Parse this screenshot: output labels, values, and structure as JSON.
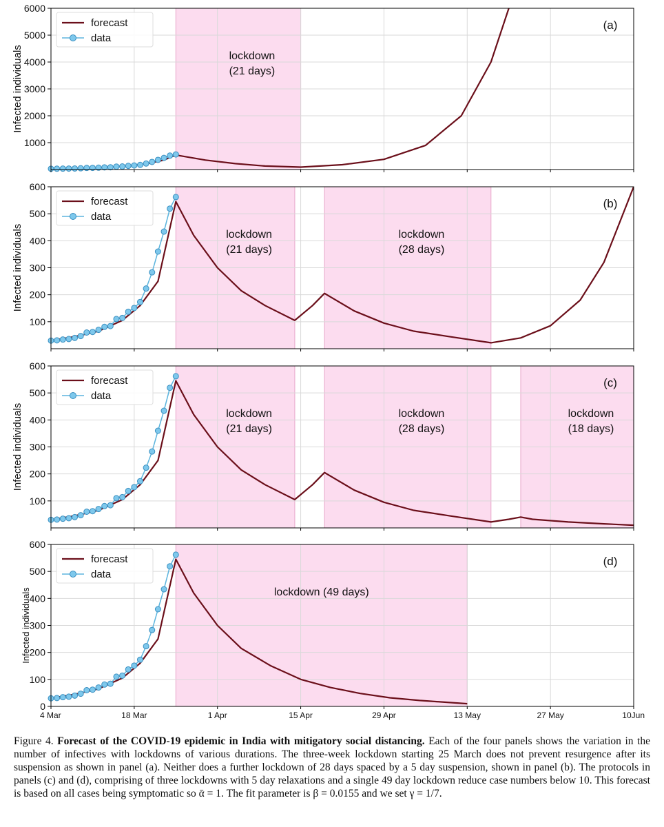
{
  "chart_data": [
    {
      "type": "line",
      "panel_label": "(a)",
      "ylabel": "Infected individuals",
      "ylim": [
        0,
        6000
      ],
      "yticks": [
        1000,
        2000,
        3000,
        4000,
        5000,
        6000
      ],
      "xlim": [
        "2020-03-04",
        "2020-06-10"
      ],
      "legend": [
        "forecast",
        "data"
      ],
      "legend_position": "top-left",
      "grid": true,
      "lockdowns": [
        {
          "start": "2020-03-25",
          "end": "2020-04-15",
          "label_lines": [
            "lockdown",
            "(21 days)"
          ]
        }
      ],
      "series": [
        {
          "name": "forecast",
          "x": [
            "2020-03-04",
            "2020-03-08",
            "2020-03-12",
            "2020-03-16",
            "2020-03-20",
            "2020-03-23",
            "2020-03-25",
            "2020-03-30",
            "2020-04-04",
            "2020-04-09",
            "2020-04-15",
            "2020-04-22",
            "2020-04-29",
            "2020-05-06",
            "2020-05-12",
            "2020-05-17",
            "2020-05-20"
          ],
          "y": [
            30,
            45,
            70,
            120,
            210,
            350,
            540,
            350,
            220,
            130,
            90,
            180,
            380,
            900,
            2000,
            4000,
            6000
          ]
        },
        {
          "name": "data",
          "x": [
            "2020-03-04",
            "2020-03-05",
            "2020-03-06",
            "2020-03-07",
            "2020-03-08",
            "2020-03-09",
            "2020-03-10",
            "2020-03-11",
            "2020-03-12",
            "2020-03-13",
            "2020-03-14",
            "2020-03-15",
            "2020-03-16",
            "2020-03-17",
            "2020-03-18",
            "2020-03-19",
            "2020-03-20",
            "2020-03-21",
            "2020-03-22",
            "2020-03-23",
            "2020-03-24",
            "2020-03-25"
          ],
          "y": [
            30,
            31,
            34,
            36,
            40,
            47,
            60,
            62,
            70,
            81,
            84,
            110,
            114,
            137,
            151,
            173,
            223,
            283,
            360,
            434,
            519,
            562
          ]
        }
      ]
    },
    {
      "type": "line",
      "panel_label": "(b)",
      "ylabel": "Infected individuals",
      "ylim": [
        0,
        600
      ],
      "yticks": [
        100,
        200,
        300,
        400,
        500,
        600
      ],
      "xlim": [
        "2020-03-04",
        "2020-06-10"
      ],
      "legend": [
        "forecast",
        "data"
      ],
      "legend_position": "top-left",
      "grid": true,
      "lockdowns": [
        {
          "start": "2020-03-25",
          "end": "2020-04-14",
          "label_lines": [
            "lockdown",
            "(21 days)"
          ]
        },
        {
          "start": "2020-04-19",
          "end": "2020-05-17",
          "label_lines": [
            "lockdown",
            "(28 days)"
          ]
        }
      ],
      "series": [
        {
          "name": "forecast",
          "x": [
            "2020-03-04",
            "2020-03-08",
            "2020-03-12",
            "2020-03-16",
            "2020-03-19",
            "2020-03-22",
            "2020-03-25",
            "2020-03-28",
            "2020-04-01",
            "2020-04-05",
            "2020-04-09",
            "2020-04-14",
            "2020-04-17",
            "2020-04-19",
            "2020-04-24",
            "2020-04-29",
            "2020-05-04",
            "2020-05-10",
            "2020-05-17",
            "2020-05-22",
            "2020-05-27",
            "2020-06-01",
            "2020-06-05",
            "2020-06-10"
          ],
          "y": [
            30,
            45,
            65,
            105,
            160,
            250,
            545,
            420,
            300,
            215,
            160,
            105,
            160,
            205,
            140,
            95,
            65,
            45,
            22,
            40,
            85,
            180,
            320,
            600
          ]
        },
        {
          "name": "data",
          "x": [
            "2020-03-04",
            "2020-03-05",
            "2020-03-06",
            "2020-03-07",
            "2020-03-08",
            "2020-03-09",
            "2020-03-10",
            "2020-03-11",
            "2020-03-12",
            "2020-03-13",
            "2020-03-14",
            "2020-03-15",
            "2020-03-16",
            "2020-03-17",
            "2020-03-18",
            "2020-03-19",
            "2020-03-20",
            "2020-03-21",
            "2020-03-22",
            "2020-03-23",
            "2020-03-24",
            "2020-03-25"
          ],
          "y": [
            30,
            31,
            34,
            36,
            40,
            47,
            60,
            62,
            70,
            81,
            84,
            110,
            114,
            137,
            151,
            173,
            223,
            283,
            360,
            434,
            519,
            562
          ]
        }
      ]
    },
    {
      "type": "line",
      "panel_label": "(c)",
      "ylabel": "Infected individuals",
      "ylim": [
        0,
        600
      ],
      "yticks": [
        100,
        200,
        300,
        400,
        500,
        600
      ],
      "xlim": [
        "2020-03-04",
        "2020-06-10"
      ],
      "legend": [
        "forecast",
        "data"
      ],
      "legend_position": "top-left",
      "grid": true,
      "lockdowns": [
        {
          "start": "2020-03-25",
          "end": "2020-04-14",
          "label_lines": [
            "lockdown",
            "(21 days)"
          ]
        },
        {
          "start": "2020-04-19",
          "end": "2020-05-17",
          "label_lines": [
            "lockdown",
            "(28 days)"
          ]
        },
        {
          "start": "2020-05-22",
          "end": "2020-06-10",
          "label_lines": [
            "lockdown",
            "(18 days)"
          ]
        }
      ],
      "series": [
        {
          "name": "forecast",
          "x": [
            "2020-03-04",
            "2020-03-08",
            "2020-03-12",
            "2020-03-16",
            "2020-03-19",
            "2020-03-22",
            "2020-03-25",
            "2020-03-28",
            "2020-04-01",
            "2020-04-05",
            "2020-04-09",
            "2020-04-14",
            "2020-04-17",
            "2020-04-19",
            "2020-04-24",
            "2020-04-29",
            "2020-05-04",
            "2020-05-10",
            "2020-05-17",
            "2020-05-20",
            "2020-05-22",
            "2020-05-24",
            "2020-05-30",
            "2020-06-05",
            "2020-06-10"
          ],
          "y": [
            30,
            45,
            65,
            105,
            160,
            250,
            545,
            420,
            300,
            215,
            160,
            105,
            160,
            205,
            140,
            95,
            65,
            45,
            22,
            32,
            40,
            32,
            22,
            15,
            10
          ]
        },
        {
          "name": "data",
          "x": [
            "2020-03-04",
            "2020-03-05",
            "2020-03-06",
            "2020-03-07",
            "2020-03-08",
            "2020-03-09",
            "2020-03-10",
            "2020-03-11",
            "2020-03-12",
            "2020-03-13",
            "2020-03-14",
            "2020-03-15",
            "2020-03-16",
            "2020-03-17",
            "2020-03-18",
            "2020-03-19",
            "2020-03-20",
            "2020-03-21",
            "2020-03-22",
            "2020-03-23",
            "2020-03-24",
            "2020-03-25"
          ],
          "y": [
            30,
            31,
            34,
            36,
            40,
            47,
            60,
            62,
            70,
            81,
            84,
            110,
            114,
            137,
            151,
            173,
            223,
            283,
            360,
            434,
            519,
            562
          ]
        }
      ]
    },
    {
      "type": "line",
      "panel_label": "(d)",
      "ylabel": "Infected individuals",
      "ylim": [
        0,
        600
      ],
      "yticks": [
        0,
        100,
        200,
        300,
        400,
        500,
        600
      ],
      "xlim": [
        "2020-03-04",
        "2020-06-10"
      ],
      "xticks": [
        "4 Mar",
        "18 Mar",
        "1 Apr",
        "15 Apr",
        "29 Apr",
        "13 May",
        "27 May",
        "10Jun"
      ],
      "legend": [
        "forecast",
        "data"
      ],
      "legend_position": "top-left",
      "grid": true,
      "lockdowns": [
        {
          "start": "2020-03-25",
          "end": "2020-05-13",
          "label_lines": [
            "lockdown (49 days)"
          ]
        }
      ],
      "series": [
        {
          "name": "forecast",
          "x": [
            "2020-03-04",
            "2020-03-08",
            "2020-03-12",
            "2020-03-16",
            "2020-03-19",
            "2020-03-22",
            "2020-03-25",
            "2020-03-28",
            "2020-04-01",
            "2020-04-05",
            "2020-04-10",
            "2020-04-15",
            "2020-04-20",
            "2020-04-25",
            "2020-04-30",
            "2020-05-05",
            "2020-05-13"
          ],
          "y": [
            30,
            45,
            65,
            105,
            160,
            250,
            545,
            420,
            300,
            215,
            150,
            100,
            70,
            48,
            32,
            22,
            10
          ]
        },
        {
          "name": "data",
          "x": [
            "2020-03-04",
            "2020-03-05",
            "2020-03-06",
            "2020-03-07",
            "2020-03-08",
            "2020-03-09",
            "2020-03-10",
            "2020-03-11",
            "2020-03-12",
            "2020-03-13",
            "2020-03-14",
            "2020-03-15",
            "2020-03-16",
            "2020-03-17",
            "2020-03-18",
            "2020-03-19",
            "2020-03-20",
            "2020-03-21",
            "2020-03-22",
            "2020-03-23",
            "2020-03-24",
            "2020-03-25"
          ],
          "y": [
            30,
            31,
            34,
            36,
            40,
            47,
            60,
            62,
            70,
            81,
            84,
            110,
            114,
            137,
            151,
            173,
            223,
            283,
            360,
            434,
            519,
            562
          ]
        }
      ]
    }
  ],
  "colors": {
    "forecast": "#6b0f1a",
    "data_line": "#5bb4dd",
    "data_marker": "#7ec8ec",
    "lockdown_fill": "#fcdcef",
    "grid": "#d9d9d9"
  },
  "caption": {
    "lead": "Figure 4. ",
    "title": "Forecast of the COVID-19 epidemic in India with mitigatory social distancing.",
    "body": " Each of the four panels shows the variation in the number of infectives with lockdowns of various durations. The three-week lockdown starting 25 March does not prevent resurgence after its suspension as shown in panel (a). Neither does a further lockdown of 28 days spaced by a 5 day suspension, shown in panel (b). The protocols in panels (c) and (d), comprising of three lockdowns with 5 day relaxations and a single 49 day lockdown reduce case numbers below 10. This forecast is based on all cases being symptomatic so ᾱ = 1. The fit parameter is β = 0.0155 and we set γ = 1/7."
  }
}
